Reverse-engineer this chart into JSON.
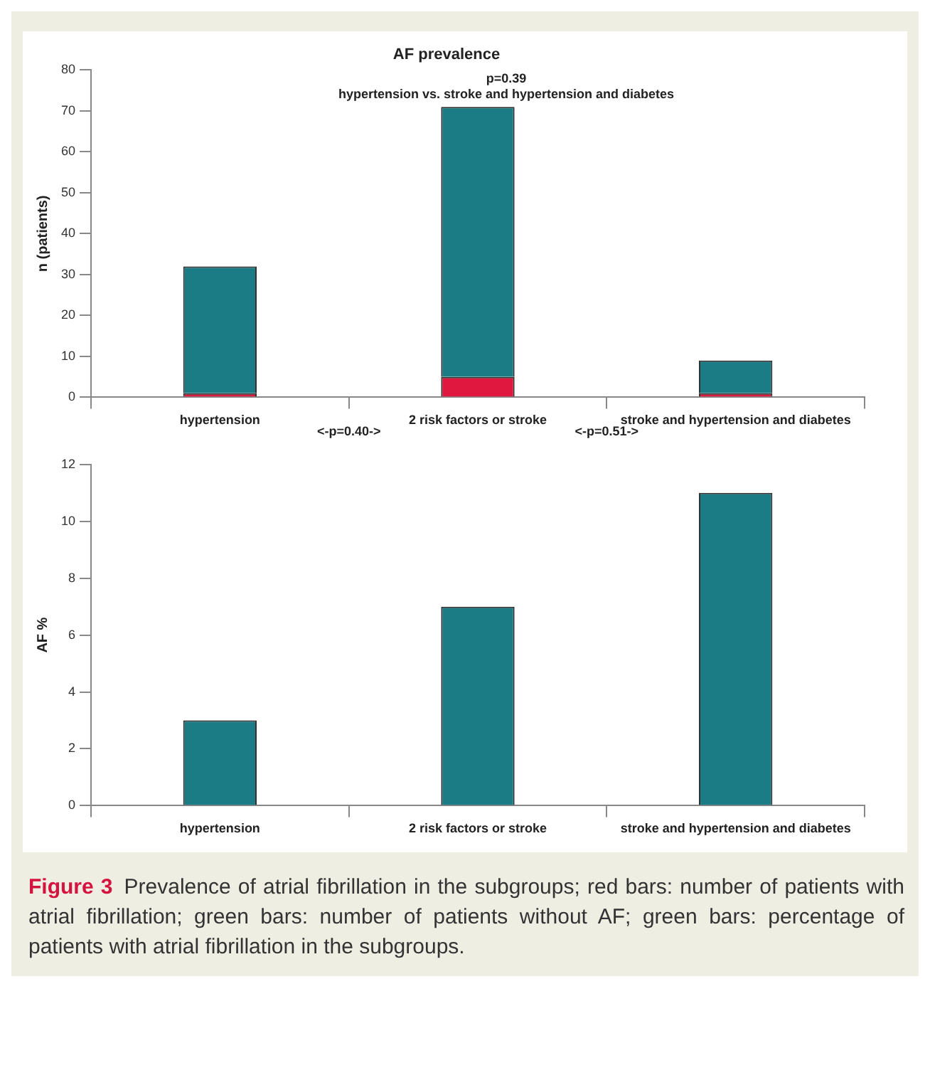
{
  "chart_data": [
    {
      "type": "bar",
      "title": "AF prevalence",
      "ylabel": "n (patients)",
      "categories": [
        "hypertension",
        "2 risk factors or stroke",
        "stroke and hypertension and diabetes"
      ],
      "stacked": true,
      "series": [
        {
          "color": "#e0173f",
          "values": [
            1,
            5,
            1
          ]
        },
        {
          "color": "#1b7c86",
          "values": [
            31,
            66,
            8
          ]
        }
      ],
      "ylim": [
        0,
        80
      ],
      "yticks": [
        0,
        10,
        20,
        30,
        40,
        50,
        60,
        70,
        80
      ],
      "legend": false,
      "annotations": [
        "p=0.39",
        "hypertension vs. stroke and hypertension and diabetes",
        "<-p=0.40->",
        "<-p=0.51->"
      ]
    },
    {
      "type": "bar",
      "ylabel": "AF %",
      "categories": [
        "hypertension",
        "2 risk factors or stroke",
        "stroke and hypertension and diabetes"
      ],
      "values": [
        3,
        7,
        11
      ],
      "color": "#1b7c86",
      "ylim": [
        0,
        12
      ],
      "yticks": [
        0,
        2,
        4,
        6,
        8,
        10,
        12
      ],
      "legend": false,
      "annotations": [
        "Figure 3",
        "Prevalence of atrial fibrillation in the subgroups; red bars: number of patients with atrial fibrillation; green bars: number of patients without AF; green bars: percentage of patients with atrial fibrillation in the subgroups."
      ]
    }
  ]
}
